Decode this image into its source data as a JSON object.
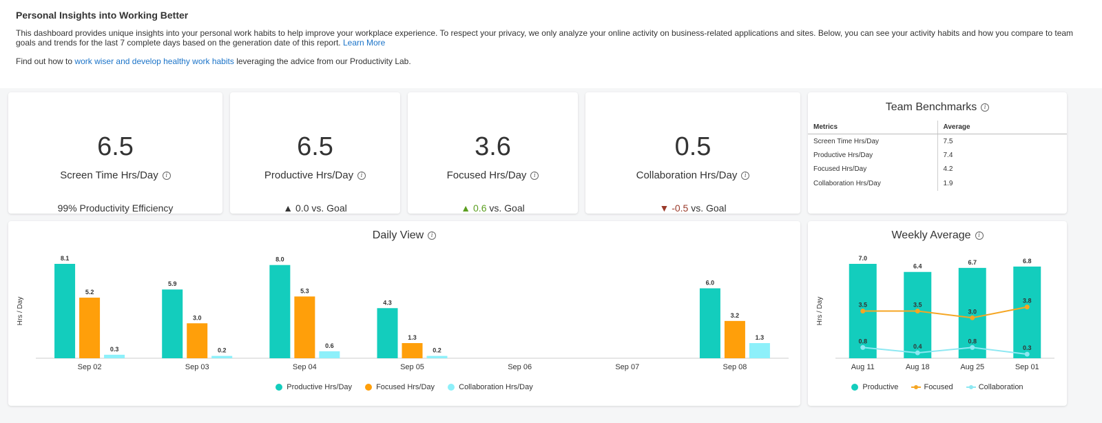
{
  "intro": {
    "title": "Personal Insights into Working Better",
    "paragraph1": "This dashboard provides unique insights into your personal work habits to help improve your workplace experience. To respect your privacy, we only analyze your online activity on business-related applications and sites. Below, you can see your activity habits and how you compare to team goals and trends for the last 7 complete days based on the generation date of this report.",
    "learn_more": "Learn More",
    "p2_prefix": "Find out how to",
    "p2_link": "work wiser and develop healthy work habits",
    "p2_suffix": "leveraging the advice from our Productivity Lab."
  },
  "kpis": [
    {
      "value": "6.5",
      "label": "Screen Time Hrs/Day",
      "sub_arrow": "",
      "sub_value": "",
      "sub_text": "99% Productivity Efficiency"
    },
    {
      "value": "6.5",
      "label": "Productive Hrs/Day",
      "sub_arrow": "▲",
      "sub_value": "0.0",
      "sub_text": "vs. Goal"
    },
    {
      "value": "3.6",
      "label": "Focused Hrs/Day",
      "sub_arrow": "▲",
      "sub_value": "0.6",
      "sub_text": "vs. Goal"
    },
    {
      "value": "0.5",
      "label": "Collaboration Hrs/Day",
      "sub_arrow": "▼",
      "sub_value": "-0.5",
      "sub_text": "vs. Goal"
    }
  ],
  "benchmarks": {
    "title": "Team Benchmarks",
    "col_metrics": "Metrics",
    "col_average": "Average",
    "rows": [
      {
        "metric": "Screen Time Hrs/Day",
        "avg": "7.5"
      },
      {
        "metric": "Productive Hrs/Day",
        "avg": "7.4"
      },
      {
        "metric": "Focused Hrs/Day",
        "avg": "4.2"
      },
      {
        "metric": "Collaboration Hrs/Day",
        "avg": "1.9"
      }
    ]
  },
  "colors": {
    "productive": "#13cdbd",
    "focused": "#ff9f0a",
    "collaboration": "#8df0fa",
    "focused_line": "#f5a623",
    "collab_line": "#8de8f2"
  },
  "daily": {
    "title": "Daily View",
    "legend": [
      "Productive Hrs/Day",
      "Focused Hrs/Day",
      "Collaboration Hrs/Day"
    ]
  },
  "weekly": {
    "title": "Weekly Average",
    "legend": [
      "Productive",
      "Focused",
      "Collaboration"
    ]
  },
  "chart_data": [
    {
      "type": "bar",
      "title": "Daily View",
      "ylabel": "Hrs / Day",
      "categories": [
        "Sep 02",
        "Sep 03",
        "Sep 04",
        "Sep 05",
        "Sep 06",
        "Sep 07",
        "Sep 08"
      ],
      "ylim": [
        0,
        8.1
      ],
      "series": [
        {
          "name": "Productive Hrs/Day",
          "values": [
            8.1,
            5.9,
            8.0,
            4.3,
            null,
            null,
            6.0
          ]
        },
        {
          "name": "Focused Hrs/Day",
          "values": [
            5.2,
            3.0,
            5.3,
            1.3,
            null,
            null,
            3.2
          ]
        },
        {
          "name": "Collaboration Hrs/Day",
          "values": [
            0.3,
            0.2,
            0.6,
            0.2,
            null,
            null,
            1.3
          ]
        }
      ],
      "grid": false,
      "legend_position": "bottom"
    },
    {
      "type": "bar",
      "title": "Weekly Average",
      "ylabel": "Hrs / Day",
      "categories": [
        "Aug 11",
        "Aug 18",
        "Aug 25",
        "Sep 01"
      ],
      "ylim": [
        0,
        7.0
      ],
      "series": [
        {
          "name": "Productive",
          "type": "bar",
          "values": [
            7.0,
            6.4,
            6.7,
            6.8
          ]
        },
        {
          "name": "Focused",
          "type": "line",
          "values": [
            3.5,
            3.5,
            3.0,
            3.8
          ]
        },
        {
          "name": "Collaboration",
          "type": "line",
          "values": [
            0.8,
            0.4,
            0.8,
            0.3
          ]
        }
      ],
      "grid": false,
      "legend_position": "bottom"
    }
  ]
}
